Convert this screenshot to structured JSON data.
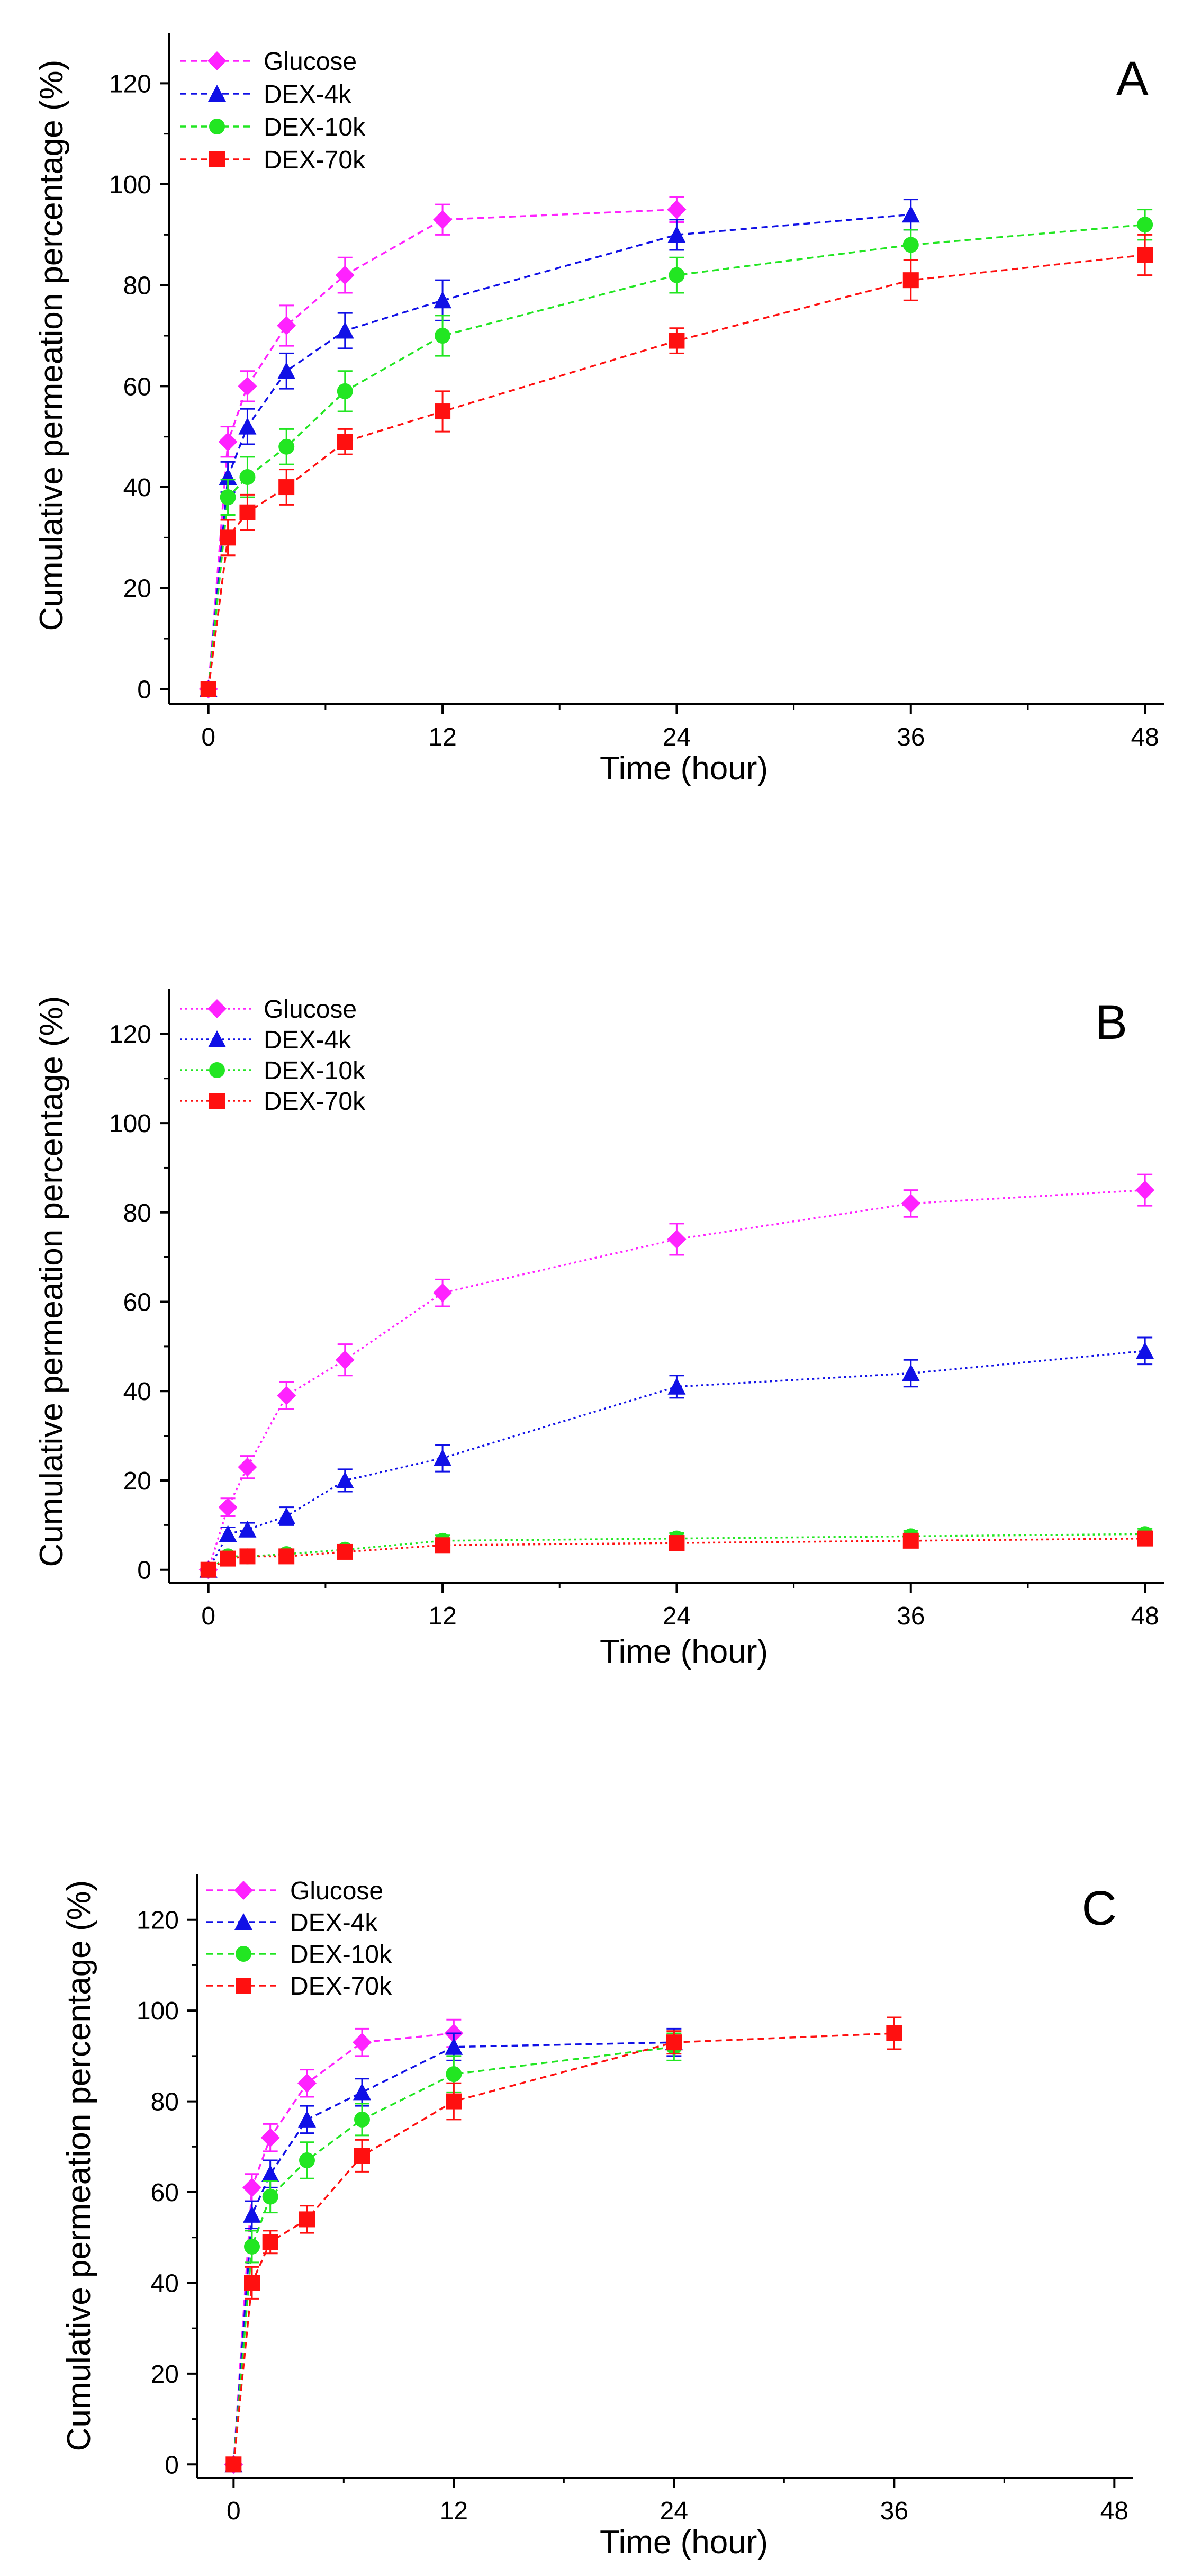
{
  "figure": {
    "background": "#ffffff",
    "series_colors": {
      "Glucose": "#ff22ff",
      "DEX-4k": "#1010e6",
      "DEX-10k": "#22e622",
      "DEX-70k": "#ff1010"
    }
  },
  "chart_data": [
    {
      "panel": "A",
      "type": "line",
      "xlabel": "Time (hour)",
      "ylabel": "Cumulative permeation percentage (%)",
      "xlim": [
        -2,
        49
      ],
      "ylim": [
        -3,
        130
      ],
      "xticks": [
        0,
        12,
        24,
        36,
        48
      ],
      "yticks": [
        0,
        20,
        40,
        60,
        80,
        100,
        120
      ],
      "legend": {
        "position": "top-left",
        "entries": [
          "Glucose",
          "DEX-4k",
          "DEX-10k",
          "DEX-70k"
        ]
      },
      "series": [
        {
          "name": "Glucose",
          "marker": "diamond",
          "line": "dashed",
          "color": "#ff22ff",
          "x": [
            0,
            1,
            2,
            4,
            7,
            12,
            24
          ],
          "y": [
            0,
            49,
            60,
            72,
            82,
            93,
            95
          ],
          "err": [
            0,
            3,
            3,
            4,
            3.5,
            3,
            2.5
          ]
        },
        {
          "name": "DEX-4k",
          "marker": "triangle",
          "line": "dashed",
          "color": "#1010e6",
          "x": [
            0,
            1,
            2,
            4,
            7,
            12,
            24,
            36
          ],
          "y": [
            0,
            42,
            52,
            63,
            71,
            77,
            90,
            94
          ],
          "err": [
            0,
            3,
            3.5,
            3.5,
            3.5,
            4,
            3,
            3
          ]
        },
        {
          "name": "DEX-10k",
          "marker": "circle",
          "line": "dashed",
          "color": "#22e622",
          "x": [
            0,
            1,
            2,
            4,
            7,
            12,
            24,
            36,
            48
          ],
          "y": [
            0,
            38,
            42,
            48,
            59,
            70,
            82,
            88,
            92
          ],
          "err": [
            0,
            3.5,
            4,
            3.5,
            4,
            4,
            3.5,
            3,
            3
          ]
        },
        {
          "name": "DEX-70k",
          "marker": "square",
          "line": "dashed",
          "color": "#ff1010",
          "x": [
            0,
            1,
            2,
            4,
            7,
            12,
            24,
            36,
            48
          ],
          "y": [
            0,
            30,
            35,
            40,
            49,
            55,
            69,
            81,
            86
          ],
          "err": [
            0,
            3.5,
            3.5,
            3.5,
            2.5,
            4,
            2.5,
            4,
            4
          ]
        }
      ]
    },
    {
      "panel": "B",
      "type": "line",
      "xlabel": "Time (hour)",
      "ylabel": "Cumulative permeation percentage (%)",
      "xlim": [
        -2,
        49
      ],
      "ylim": [
        -3,
        130
      ],
      "xticks": [
        0,
        12,
        24,
        36,
        48
      ],
      "yticks": [
        0,
        20,
        40,
        60,
        80,
        100,
        120
      ],
      "legend": {
        "position": "top-left",
        "entries": [
          "Glucose",
          "DEX-4k",
          "DEX-10k",
          "DEX-70k"
        ]
      },
      "series": [
        {
          "name": "Glucose",
          "marker": "diamond",
          "line": "dotted",
          "color": "#ff22ff",
          "x": [
            0,
            1,
            2,
            4,
            7,
            12,
            24,
            36,
            48
          ],
          "y": [
            0,
            14,
            23,
            39,
            47,
            62,
            74,
            82,
            85
          ],
          "err": [
            0,
            2,
            2.5,
            3,
            3.5,
            3,
            3.5,
            3,
            3.5
          ]
        },
        {
          "name": "DEX-4k",
          "marker": "triangle",
          "line": "dotted",
          "color": "#1010e6",
          "x": [
            0,
            1,
            2,
            4,
            7,
            12,
            24,
            36,
            48
          ],
          "y": [
            0,
            8,
            9,
            12,
            20,
            25,
            41,
            44,
            49
          ],
          "err": [
            0,
            1.5,
            1.5,
            2,
            2.5,
            3,
            2.5,
            3,
            3
          ]
        },
        {
          "name": "DEX-10k",
          "marker": "circle",
          "line": "dotted",
          "color": "#22e622",
          "x": [
            0,
            1,
            2,
            4,
            7,
            12,
            24,
            36,
            48
          ],
          "y": [
            0,
            3,
            3,
            3.5,
            4.5,
            6.5,
            7,
            7.5,
            8
          ],
          "err": [
            0,
            1,
            1,
            1,
            1,
            1.2,
            1.2,
            1.2,
            1.2
          ]
        },
        {
          "name": "DEX-70k",
          "marker": "square",
          "line": "dotted",
          "color": "#ff1010",
          "x": [
            0,
            1,
            2,
            4,
            7,
            12,
            24,
            36,
            48
          ],
          "y": [
            0,
            2.5,
            3,
            3,
            4,
            5.5,
            6,
            6.5,
            7
          ],
          "err": [
            0,
            1,
            1,
            1,
            1,
            1.2,
            1.2,
            1.2,
            1.2
          ]
        }
      ]
    },
    {
      "panel": "C",
      "type": "line",
      "xlabel": "Time (hour)",
      "ylabel": "Cumulative permeation percentage (%)",
      "xlim": [
        -2,
        49
      ],
      "ylim": [
        -3,
        130
      ],
      "xticks": [
        0,
        12,
        24,
        36,
        48
      ],
      "yticks": [
        0,
        20,
        40,
        60,
        80,
        100,
        120
      ],
      "legend": {
        "position": "top-left",
        "entries": [
          "Glucose",
          "DEX-4k",
          "DEX-10k",
          "DEX-70k"
        ]
      },
      "series": [
        {
          "name": "Glucose",
          "marker": "diamond",
          "line": "dashed",
          "color": "#ff22ff",
          "x": [
            0,
            1,
            2,
            4,
            7,
            12
          ],
          "y": [
            0,
            61,
            72,
            84,
            93,
            95
          ],
          "err": [
            0,
            3,
            3,
            3,
            3,
            3
          ]
        },
        {
          "name": "DEX-4k",
          "marker": "triangle",
          "line": "dashed",
          "color": "#1010e6",
          "x": [
            0,
            1,
            2,
            4,
            7,
            12,
            24
          ],
          "y": [
            0,
            55,
            64,
            76,
            82,
            92,
            93
          ],
          "err": [
            0,
            3,
            3,
            3,
            3,
            3,
            3
          ]
        },
        {
          "name": "DEX-10k",
          "marker": "circle",
          "line": "dashed",
          "color": "#22e622",
          "x": [
            0,
            1,
            2,
            4,
            7,
            12,
            24
          ],
          "y": [
            0,
            48,
            59,
            67,
            76,
            86,
            92
          ],
          "err": [
            0,
            3.5,
            3.5,
            4,
            3.5,
            4,
            3
          ]
        },
        {
          "name": "DEX-70k",
          "marker": "square",
          "line": "dashed",
          "color": "#ff1010",
          "x": [
            0,
            1,
            2,
            4,
            7,
            12,
            24,
            36
          ],
          "y": [
            0,
            40,
            49,
            54,
            68,
            80,
            93,
            95
          ],
          "err": [
            0,
            3.5,
            2.5,
            3,
            3.5,
            4,
            2.5,
            3.5
          ]
        }
      ]
    }
  ]
}
